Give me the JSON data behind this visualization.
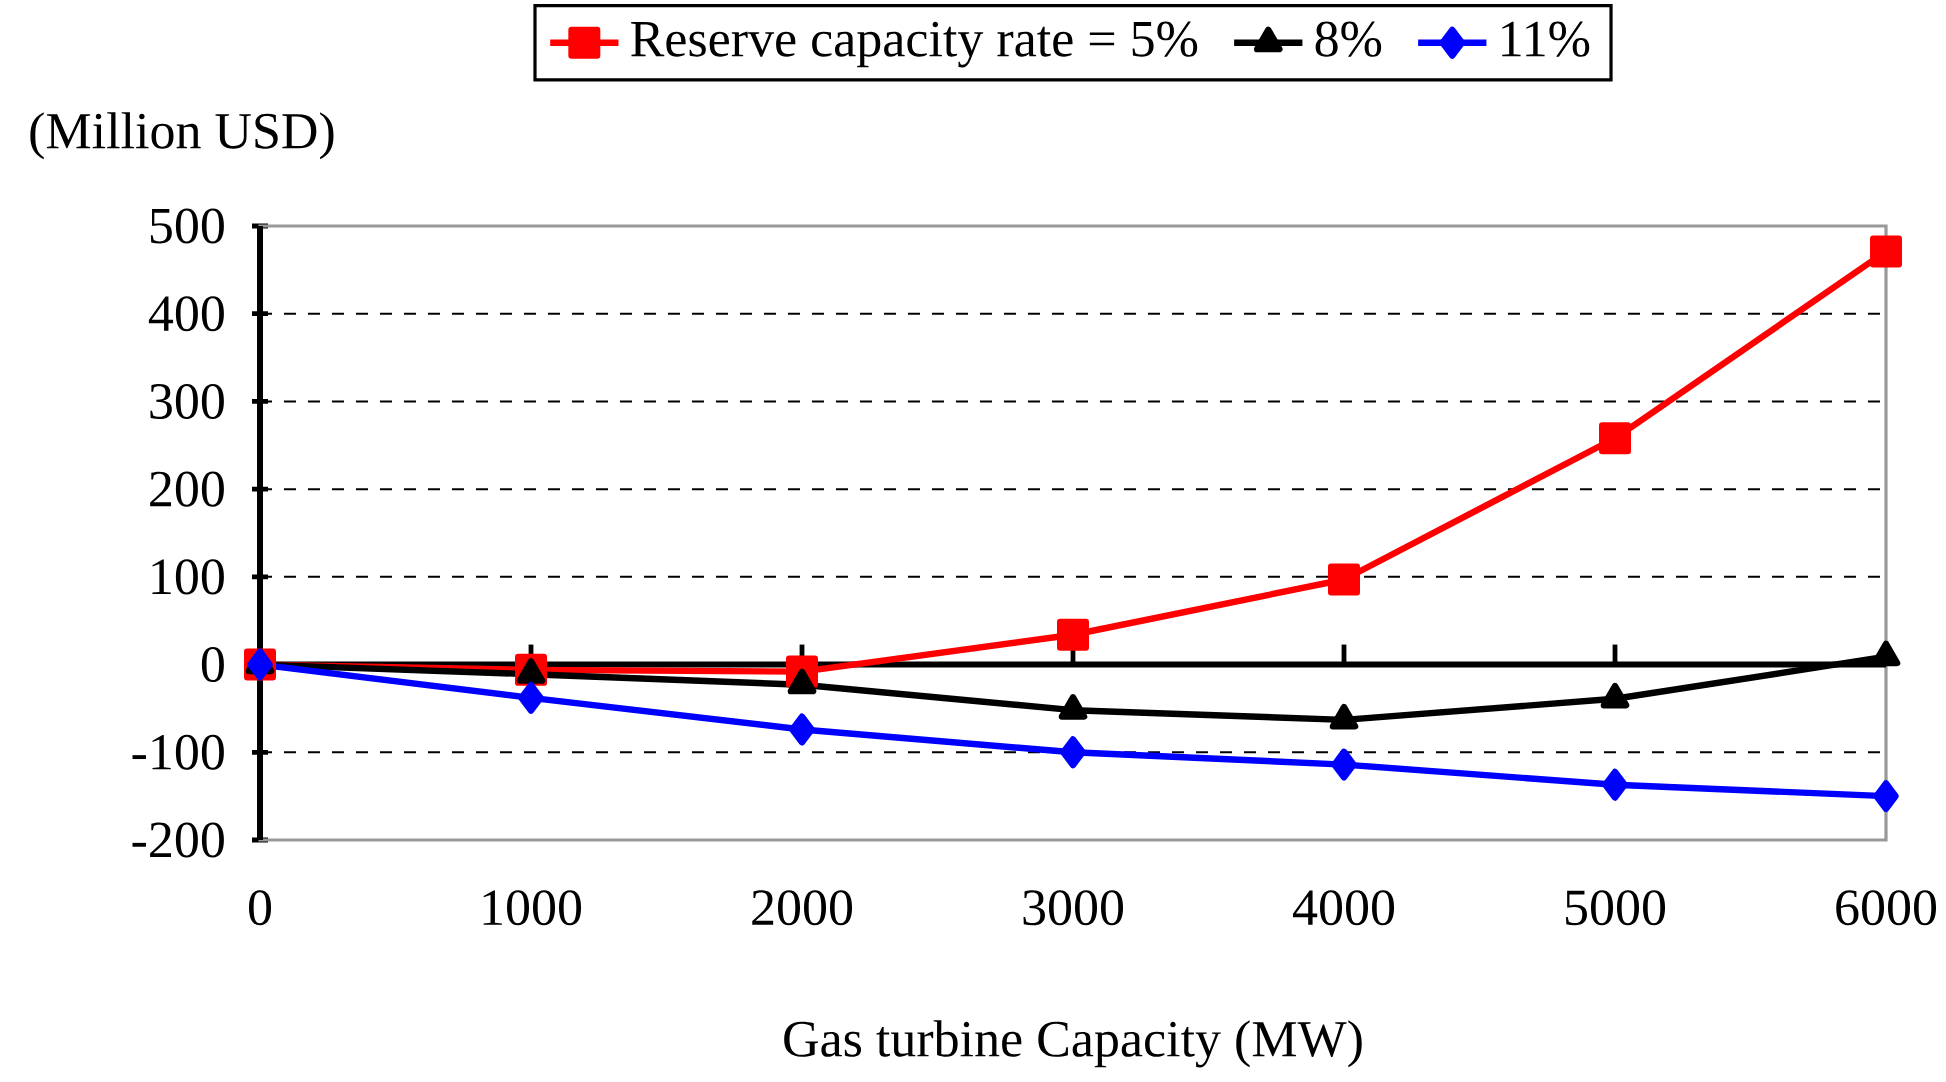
{
  "chart_data": {
    "type": "line",
    "xlabel": "Gas turbine Capacity (MW)",
    "ylabel": "(Million USD)",
    "x": [
      0,
      1000,
      2000,
      3000,
      4000,
      5000,
      6000
    ],
    "series": [
      {
        "name": "Reserve capacity rate = 5%",
        "color": "#ff0000",
        "marker": "square",
        "values": [
          0,
          -6,
          -8,
          34,
          97,
          258,
          471
        ]
      },
      {
        "name": "8%",
        "color": "#000000",
        "marker": "triangle",
        "values": [
          0,
          -11,
          -23,
          -52,
          -63,
          -39,
          9
        ]
      },
      {
        "name": "11%",
        "color": "#0000ff",
        "marker": "diamond",
        "values": [
          0,
          -38,
          -74,
          -100,
          -114,
          -137,
          -150
        ]
      }
    ],
    "xlim": [
      0,
      6000
    ],
    "xticks": [
      0,
      1000,
      2000,
      3000,
      4000,
      5000,
      6000
    ],
    "ylim": [
      -200,
      500
    ],
    "yticks": [
      -200,
      -100,
      0,
      100,
      200,
      300,
      400,
      500
    ],
    "grid": "y",
    "legend": "top"
  }
}
